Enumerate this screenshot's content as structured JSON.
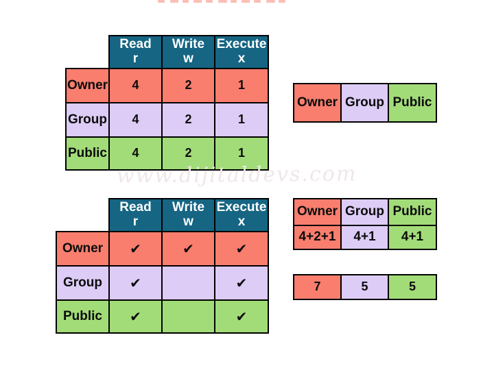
{
  "diagram": {
    "watermark": "www.dijitaldevs.com",
    "colors": {
      "header_teal": "#156583",
      "owner_red": "#F97E6E",
      "group_lavender": "#DDCCF6",
      "public_green": "#A2DC79",
      "border": "#000000",
      "header_text": "#FFFFFF",
      "body_text": "#0B0B0B"
    },
    "permission_values_table": {
      "columns": [
        {
          "line1": "Read",
          "line2": "r"
        },
        {
          "line1": "Write",
          "line2": "w"
        },
        {
          "line1": "Execute",
          "line2": "x"
        }
      ],
      "rows": [
        {
          "label": "Owner",
          "values": [
            "4",
            "2",
            "1"
          ]
        },
        {
          "label": "Group",
          "values": [
            "4",
            "2",
            "1"
          ]
        },
        {
          "label": "Public",
          "values": [
            "4",
            "2",
            "1"
          ]
        }
      ]
    },
    "entity_bar": {
      "cells": [
        "Owner",
        "Group",
        "Public"
      ]
    },
    "permission_checks_table": {
      "columns": [
        {
          "line1": "Read",
          "line2": "r"
        },
        {
          "line1": "Write",
          "line2": "w"
        },
        {
          "line1": "Execute",
          "line2": "x"
        }
      ],
      "rows": [
        {
          "label": "Owner",
          "values": [
            "✔",
            "✔",
            "✔"
          ]
        },
        {
          "label": "Group",
          "values": [
            "✔",
            "",
            "✔"
          ]
        },
        {
          "label": "Public",
          "values": [
            "✔",
            "",
            "✔"
          ]
        }
      ]
    },
    "sum_table": {
      "header": [
        "Owner",
        "Group",
        "Public"
      ],
      "values": [
        "4+2+1",
        "4+1",
        "4+1"
      ]
    },
    "result_bar": {
      "values": [
        "7",
        "5",
        "5"
      ]
    }
  }
}
